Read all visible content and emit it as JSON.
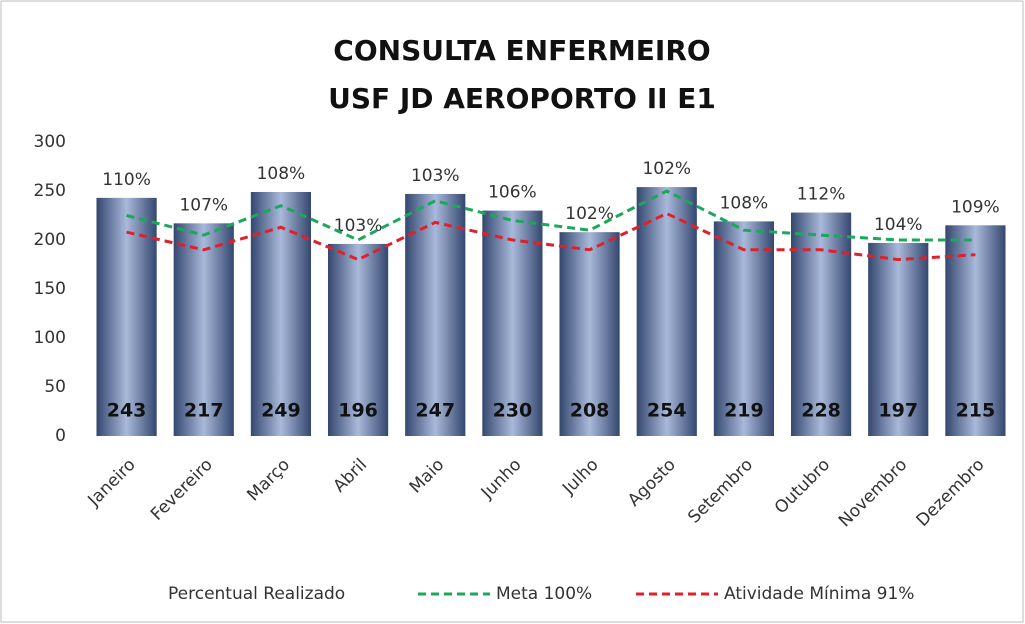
{
  "chart_data": {
    "type": "bar",
    "title": "CONSULTA ENFERMEIRO",
    "subtitle": "USF JD AEROPORTO II E1",
    "categories": [
      "Janeiro",
      "Fevereiro",
      "Março",
      "Abril",
      "Maio",
      "Junho",
      "Julho",
      "Agosto",
      "Setembro",
      "Outubro",
      "Novembro",
      "Dezembro"
    ],
    "values": [
      243,
      217,
      249,
      196,
      247,
      230,
      208,
      254,
      219,
      228,
      197,
      215
    ],
    "color": "#4a5f8f",
    "series": [
      {
        "name": "Percentual Realizado",
        "type": "label",
        "values": [
          110,
          107,
          108,
          103,
          103,
          106,
          102,
          102,
          108,
          112,
          104,
          109
        ],
        "value_labels": [
          "110%",
          "107%",
          "108%",
          "103%",
          "103%",
          "106%",
          "102%",
          "102%",
          "108%",
          "112%",
          "104%",
          "109%"
        ]
      },
      {
        "name": "Meta 100%",
        "type": "line",
        "color": "#1aa85a",
        "values": [
          225,
          205,
          235,
          200,
          240,
          220,
          210,
          250,
          210,
          205,
          200,
          200
        ]
      },
      {
        "name": "Atividade Mínima 91%",
        "type": "line",
        "color": "#e0202a",
        "values": [
          208,
          190,
          213,
          180,
          218,
          200,
          190,
          227,
          190,
          190,
          180,
          185
        ]
      }
    ],
    "ylim": [
      0,
      300
    ],
    "yticks": [
      0,
      50,
      100,
      150,
      200,
      250,
      300
    ],
    "grid": false
  }
}
